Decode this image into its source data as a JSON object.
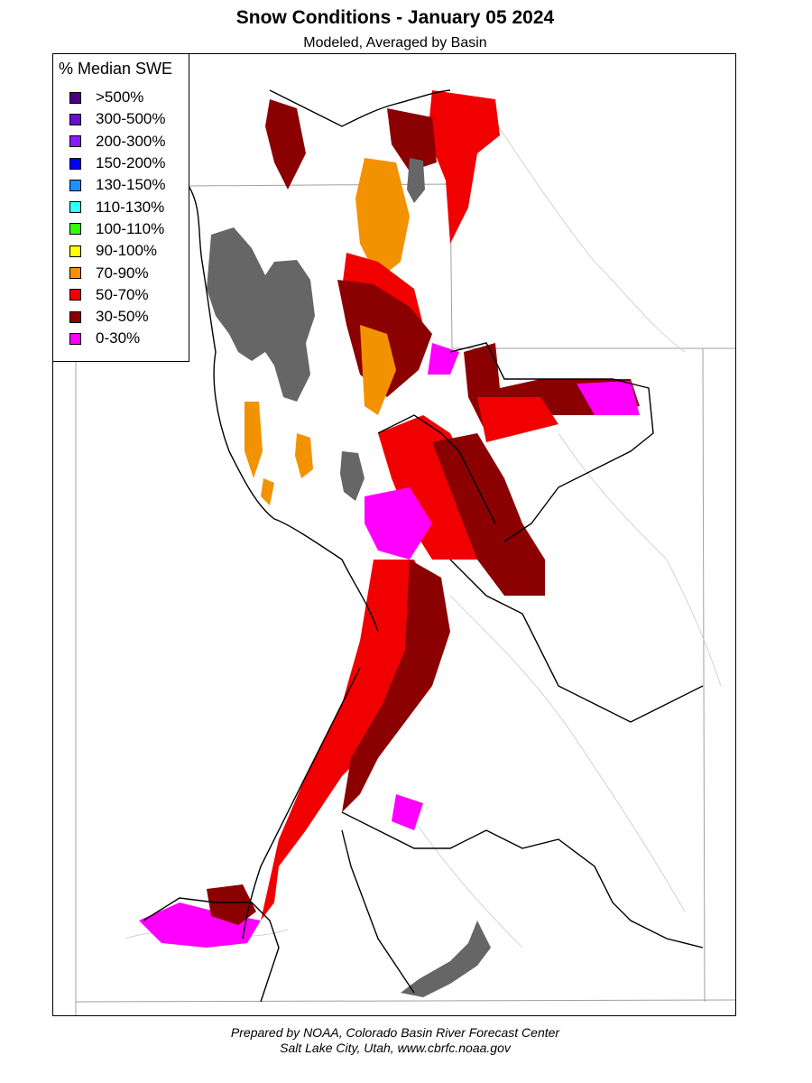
{
  "header": {
    "title": "Snow Conditions - January 05 2024",
    "subtitle": "Modeled, Averaged by Basin"
  },
  "legend": {
    "title": "% Median SWE",
    "items": [
      {
        "label": ">500%",
        "color": "#4b0082"
      },
      {
        "label": "300-500%",
        "color": "#6a0dcc"
      },
      {
        "label": "200-300%",
        "color": "#8a1aff"
      },
      {
        "label": "150-200%",
        "color": "#0000ff"
      },
      {
        "label": "130-150%",
        "color": "#1e90ff"
      },
      {
        "label": "110-130%",
        "color": "#33ffff"
      },
      {
        "label": "100-110%",
        "color": "#33ff00"
      },
      {
        "label": "90-100%",
        "color": "#ffff00"
      },
      {
        "label": "70-90%",
        "color": "#f39200"
      },
      {
        "label": "50-70%",
        "color": "#f00000"
      },
      {
        "label": "30-50%",
        "color": "#8b0000"
      },
      {
        "label": "0-30%",
        "color": "#ff00ff"
      }
    ]
  },
  "map": {
    "water_color": "#666666",
    "state_boundary_color": "#999999",
    "basin_boundary_color": "#000000"
  },
  "footer": {
    "line1": "Prepared by NOAA, Colorado Basin River Forecast Center",
    "line2": "Salt Lake City, Utah, www.cbrfc.noaa.gov"
  }
}
